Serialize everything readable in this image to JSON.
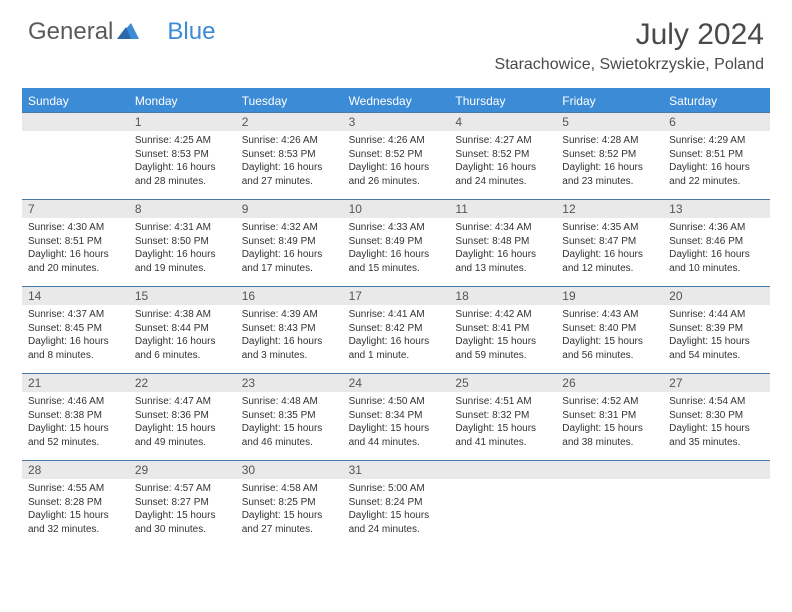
{
  "logo": {
    "part1": "General",
    "part2": "Blue"
  },
  "title": "July 2024",
  "location": "Starachowice, Swietokrzyskie, Poland",
  "weekdays": [
    "Sunday",
    "Monday",
    "Tuesday",
    "Wednesday",
    "Thursday",
    "Friday",
    "Saturday"
  ],
  "colors": {
    "header_bar": "#3b8bd6",
    "daynum_bg": "#e9e9e9",
    "week_border": "#4a7aa8",
    "text": "#333333",
    "title_text": "#4a4a4a"
  },
  "layout": {
    "rows": 5,
    "cols": 7,
    "start_offset": 1,
    "days_in_month": 31
  },
  "days": [
    {
      "n": 1,
      "sunrise": "4:25 AM",
      "sunset": "8:53 PM",
      "daylight": "16 hours and 28 minutes."
    },
    {
      "n": 2,
      "sunrise": "4:26 AM",
      "sunset": "8:53 PM",
      "daylight": "16 hours and 27 minutes."
    },
    {
      "n": 3,
      "sunrise": "4:26 AM",
      "sunset": "8:52 PM",
      "daylight": "16 hours and 26 minutes."
    },
    {
      "n": 4,
      "sunrise": "4:27 AM",
      "sunset": "8:52 PM",
      "daylight": "16 hours and 24 minutes."
    },
    {
      "n": 5,
      "sunrise": "4:28 AM",
      "sunset": "8:52 PM",
      "daylight": "16 hours and 23 minutes."
    },
    {
      "n": 6,
      "sunrise": "4:29 AM",
      "sunset": "8:51 PM",
      "daylight": "16 hours and 22 minutes."
    },
    {
      "n": 7,
      "sunrise": "4:30 AM",
      "sunset": "8:51 PM",
      "daylight": "16 hours and 20 minutes."
    },
    {
      "n": 8,
      "sunrise": "4:31 AM",
      "sunset": "8:50 PM",
      "daylight": "16 hours and 19 minutes."
    },
    {
      "n": 9,
      "sunrise": "4:32 AM",
      "sunset": "8:49 PM",
      "daylight": "16 hours and 17 minutes."
    },
    {
      "n": 10,
      "sunrise": "4:33 AM",
      "sunset": "8:49 PM",
      "daylight": "16 hours and 15 minutes."
    },
    {
      "n": 11,
      "sunrise": "4:34 AM",
      "sunset": "8:48 PM",
      "daylight": "16 hours and 13 minutes."
    },
    {
      "n": 12,
      "sunrise": "4:35 AM",
      "sunset": "8:47 PM",
      "daylight": "16 hours and 12 minutes."
    },
    {
      "n": 13,
      "sunrise": "4:36 AM",
      "sunset": "8:46 PM",
      "daylight": "16 hours and 10 minutes."
    },
    {
      "n": 14,
      "sunrise": "4:37 AM",
      "sunset": "8:45 PM",
      "daylight": "16 hours and 8 minutes."
    },
    {
      "n": 15,
      "sunrise": "4:38 AM",
      "sunset": "8:44 PM",
      "daylight": "16 hours and 6 minutes."
    },
    {
      "n": 16,
      "sunrise": "4:39 AM",
      "sunset": "8:43 PM",
      "daylight": "16 hours and 3 minutes."
    },
    {
      "n": 17,
      "sunrise": "4:41 AM",
      "sunset": "8:42 PM",
      "daylight": "16 hours and 1 minute."
    },
    {
      "n": 18,
      "sunrise": "4:42 AM",
      "sunset": "8:41 PM",
      "daylight": "15 hours and 59 minutes."
    },
    {
      "n": 19,
      "sunrise": "4:43 AM",
      "sunset": "8:40 PM",
      "daylight": "15 hours and 56 minutes."
    },
    {
      "n": 20,
      "sunrise": "4:44 AM",
      "sunset": "8:39 PM",
      "daylight": "15 hours and 54 minutes."
    },
    {
      "n": 21,
      "sunrise": "4:46 AM",
      "sunset": "8:38 PM",
      "daylight": "15 hours and 52 minutes."
    },
    {
      "n": 22,
      "sunrise": "4:47 AM",
      "sunset": "8:36 PM",
      "daylight": "15 hours and 49 minutes."
    },
    {
      "n": 23,
      "sunrise": "4:48 AM",
      "sunset": "8:35 PM",
      "daylight": "15 hours and 46 minutes."
    },
    {
      "n": 24,
      "sunrise": "4:50 AM",
      "sunset": "8:34 PM",
      "daylight": "15 hours and 44 minutes."
    },
    {
      "n": 25,
      "sunrise": "4:51 AM",
      "sunset": "8:32 PM",
      "daylight": "15 hours and 41 minutes."
    },
    {
      "n": 26,
      "sunrise": "4:52 AM",
      "sunset": "8:31 PM",
      "daylight": "15 hours and 38 minutes."
    },
    {
      "n": 27,
      "sunrise": "4:54 AM",
      "sunset": "8:30 PM",
      "daylight": "15 hours and 35 minutes."
    },
    {
      "n": 28,
      "sunrise": "4:55 AM",
      "sunset": "8:28 PM",
      "daylight": "15 hours and 32 minutes."
    },
    {
      "n": 29,
      "sunrise": "4:57 AM",
      "sunset": "8:27 PM",
      "daylight": "15 hours and 30 minutes."
    },
    {
      "n": 30,
      "sunrise": "4:58 AM",
      "sunset": "8:25 PM",
      "daylight": "15 hours and 27 minutes."
    },
    {
      "n": 31,
      "sunrise": "5:00 AM",
      "sunset": "8:24 PM",
      "daylight": "15 hours and 24 minutes."
    }
  ],
  "labels": {
    "sunrise": "Sunrise:",
    "sunset": "Sunset:",
    "daylight": "Daylight:"
  }
}
